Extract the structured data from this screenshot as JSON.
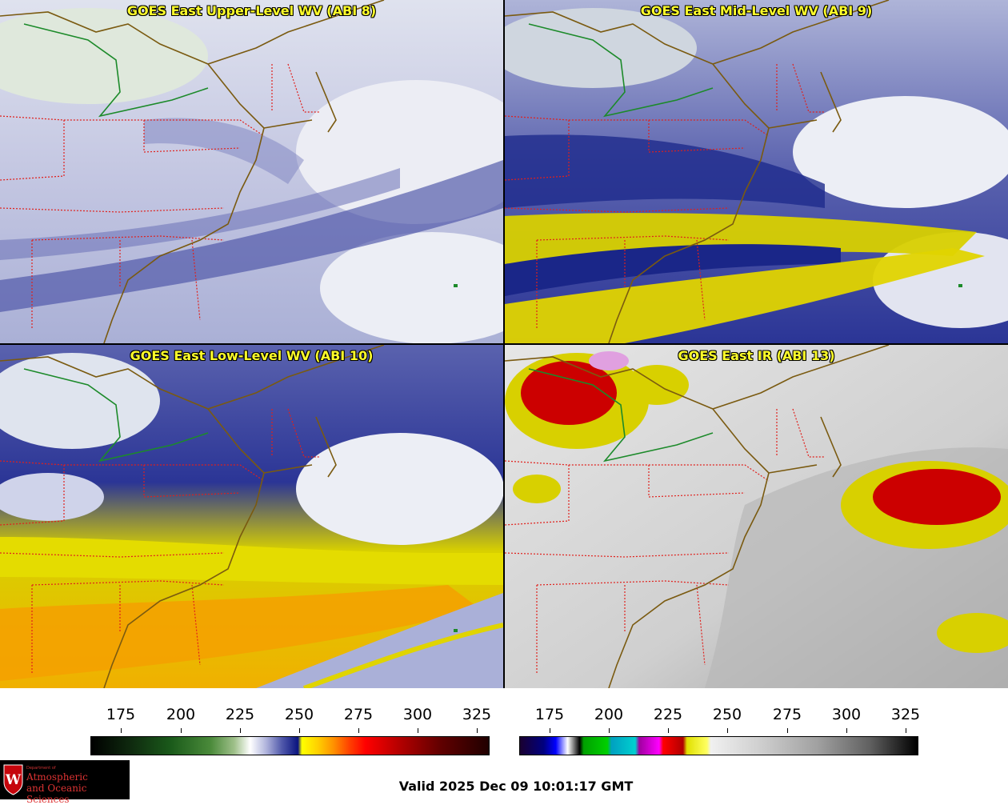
{
  "panels": {
    "top_left": {
      "title": "GOES East Upper-Level WV (ABI 8)"
    },
    "top_right": {
      "title": "GOES East Mid-Level WV (ABI 9)"
    },
    "bottom_left": {
      "title": "GOES East Low-Level WV (ABI 10)"
    },
    "bottom_right": {
      "title": "GOES East IR (ABI 13)"
    }
  },
  "colorbars": {
    "wv": {
      "ticks": [
        "175",
        "200",
        "225",
        "250",
        "275",
        "300",
        "325"
      ]
    },
    "ir": {
      "ticks": [
        "175",
        "200",
        "225",
        "250",
        "275",
        "300",
        "325"
      ]
    }
  },
  "logo": {
    "small_text": "Department of",
    "line1": "Atmospheric",
    "line2": "and Oceanic Sciences",
    "shield_letter": "W"
  },
  "valid_time": "Valid 2025 Dec 09 10:01:17 GMT",
  "colors": {
    "state_borders": "#e0201c",
    "coastline": "#7a5a10",
    "title_text": "#ffff2a",
    "logo_red": "#d33333"
  }
}
